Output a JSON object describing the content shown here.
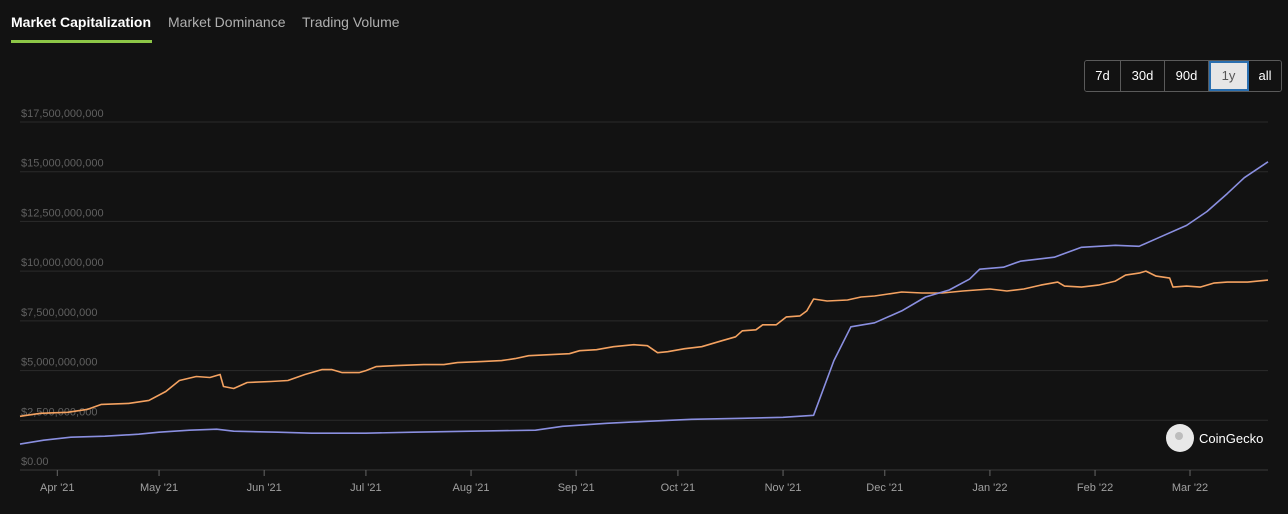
{
  "tabs": [
    {
      "label": "Market Capitalization",
      "active": true
    },
    {
      "label": "Market Dominance",
      "active": false
    },
    {
      "label": "Trading Volume",
      "active": false
    }
  ],
  "range_buttons": [
    {
      "label": "7d",
      "selected": false
    },
    {
      "label": "30d",
      "selected": false
    },
    {
      "label": "90d",
      "selected": false
    },
    {
      "label": "1y",
      "selected": true
    },
    {
      "label": "all",
      "selected": false
    }
  ],
  "credit": {
    "text": "CoinGecko",
    "icon": "coingecko-logo-icon"
  },
  "colors": {
    "series1": "#f4a261",
    "series2": "#8a8fe0",
    "accent": "#8dc647"
  },
  "chart_data": {
    "type": "line",
    "title": "",
    "xlabel": "",
    "ylabel": "",
    "xlim": [
      "2021-03-21",
      "2022-03-24"
    ],
    "ylim": [
      0,
      17500000000
    ],
    "grid": true,
    "y_ticks": [
      {
        "value": 0,
        "label": "$0.00"
      },
      {
        "value": 2500000000,
        "label": "$2,500,000,000"
      },
      {
        "value": 5000000000,
        "label": "$5,000,000,000"
      },
      {
        "value": 7500000000,
        "label": "$7,500,000,000"
      },
      {
        "value": 10000000000,
        "label": "$10,000,000,000"
      },
      {
        "value": 12500000000,
        "label": "$12,500,000,000"
      },
      {
        "value": 15000000000,
        "label": "$15,000,000,000"
      },
      {
        "value": 17500000000,
        "label": "$17,500,000,000"
      }
    ],
    "x_ticks": [
      {
        "date": "2021-04-01",
        "label": "Apr '21"
      },
      {
        "date": "2021-05-01",
        "label": "May '21"
      },
      {
        "date": "2021-06-01",
        "label": "Jun '21"
      },
      {
        "date": "2021-07-01",
        "label": "Jul '21"
      },
      {
        "date": "2021-08-01",
        "label": "Aug '21"
      },
      {
        "date": "2021-09-01",
        "label": "Sep '21"
      },
      {
        "date": "2021-10-01",
        "label": "Oct '21"
      },
      {
        "date": "2021-11-01",
        "label": "Nov '21"
      },
      {
        "date": "2021-12-01",
        "label": "Dec '21"
      },
      {
        "date": "2022-01-01",
        "label": "Jan '22"
      },
      {
        "date": "2022-02-01",
        "label": "Feb '22"
      },
      {
        "date": "2022-03-01",
        "label": "Mar '22"
      }
    ],
    "series": [
      {
        "color": "#f4a261",
        "points": [
          [
            "2021-03-21",
            2700000000
          ],
          [
            "2021-03-27",
            2850000000
          ],
          [
            "2021-04-04",
            2900000000
          ],
          [
            "2021-04-10",
            3050000000
          ],
          [
            "2021-04-14",
            3300000000
          ],
          [
            "2021-04-22",
            3350000000
          ],
          [
            "2021-04-28",
            3500000000
          ],
          [
            "2021-05-03",
            3950000000
          ],
          [
            "2021-05-07",
            4500000000
          ],
          [
            "2021-05-12",
            4700000000
          ],
          [
            "2021-05-16",
            4650000000
          ],
          [
            "2021-05-19",
            4800000000
          ],
          [
            "2021-05-20",
            4200000000
          ],
          [
            "2021-05-23",
            4100000000
          ],
          [
            "2021-05-27",
            4400000000
          ],
          [
            "2021-06-03",
            4450000000
          ],
          [
            "2021-06-08",
            4500000000
          ],
          [
            "2021-06-13",
            4800000000
          ],
          [
            "2021-06-18",
            5050000000
          ],
          [
            "2021-06-21",
            5050000000
          ],
          [
            "2021-06-24",
            4900000000
          ],
          [
            "2021-06-29",
            4900000000
          ],
          [
            "2021-07-01",
            5000000000
          ],
          [
            "2021-07-04",
            5200000000
          ],
          [
            "2021-07-10",
            5250000000
          ],
          [
            "2021-07-18",
            5300000000
          ],
          [
            "2021-07-24",
            5300000000
          ],
          [
            "2021-07-28",
            5400000000
          ],
          [
            "2021-08-04",
            5450000000
          ],
          [
            "2021-08-10",
            5500000000
          ],
          [
            "2021-08-14",
            5600000000
          ],
          [
            "2021-08-18",
            5750000000
          ],
          [
            "2021-08-24",
            5800000000
          ],
          [
            "2021-08-30",
            5850000000
          ],
          [
            "2021-09-02",
            6000000000
          ],
          [
            "2021-09-07",
            6050000000
          ],
          [
            "2021-09-12",
            6200000000
          ],
          [
            "2021-09-18",
            6300000000
          ],
          [
            "2021-09-22",
            6250000000
          ],
          [
            "2021-09-25",
            5900000000
          ],
          [
            "2021-09-28",
            5950000000
          ],
          [
            "2021-10-03",
            6100000000
          ],
          [
            "2021-10-08",
            6200000000
          ],
          [
            "2021-10-14",
            6500000000
          ],
          [
            "2021-10-18",
            6700000000
          ],
          [
            "2021-10-20",
            7000000000
          ],
          [
            "2021-10-24",
            7050000000
          ],
          [
            "2021-10-26",
            7300000000
          ],
          [
            "2021-10-30",
            7300000000
          ],
          [
            "2021-11-02",
            7700000000
          ],
          [
            "2021-11-06",
            7750000000
          ],
          [
            "2021-11-08",
            8000000000
          ],
          [
            "2021-11-10",
            8600000000
          ],
          [
            "2021-11-14",
            8500000000
          ],
          [
            "2021-11-20",
            8550000000
          ],
          [
            "2021-11-24",
            8700000000
          ],
          [
            "2021-11-28",
            8750000000
          ],
          [
            "2021-12-02",
            8850000000
          ],
          [
            "2021-12-06",
            8950000000
          ],
          [
            "2021-12-12",
            8900000000
          ],
          [
            "2021-12-18",
            8900000000
          ],
          [
            "2021-12-24",
            9000000000
          ],
          [
            "2021-12-28",
            9050000000
          ],
          [
            "2022-01-01",
            9100000000
          ],
          [
            "2022-01-06",
            9000000000
          ],
          [
            "2022-01-11",
            9100000000
          ],
          [
            "2022-01-16",
            9300000000
          ],
          [
            "2022-01-21",
            9450000000
          ],
          [
            "2022-01-23",
            9250000000
          ],
          [
            "2022-01-28",
            9200000000
          ],
          [
            "2022-02-02",
            9300000000
          ],
          [
            "2022-02-07",
            9500000000
          ],
          [
            "2022-02-10",
            9800000000
          ],
          [
            "2022-02-14",
            9900000000
          ],
          [
            "2022-02-16",
            10000000000
          ],
          [
            "2022-02-19",
            9750000000
          ],
          [
            "2022-02-23",
            9650000000
          ],
          [
            "2022-02-24",
            9200000000
          ],
          [
            "2022-02-28",
            9250000000
          ],
          [
            "2022-03-04",
            9200000000
          ],
          [
            "2022-03-08",
            9400000000
          ],
          [
            "2022-03-12",
            9450000000
          ],
          [
            "2022-03-18",
            9450000000
          ],
          [
            "2022-03-24",
            9550000000
          ]
        ]
      },
      {
        "color": "#8a8fe0",
        "points": [
          [
            "2021-03-21",
            1300000000
          ],
          [
            "2021-03-28",
            1500000000
          ],
          [
            "2021-04-05",
            1650000000
          ],
          [
            "2021-04-15",
            1700000000
          ],
          [
            "2021-04-25",
            1800000000
          ],
          [
            "2021-05-01",
            1900000000
          ],
          [
            "2021-05-10",
            2000000000
          ],
          [
            "2021-05-18",
            2050000000
          ],
          [
            "2021-05-23",
            1950000000
          ],
          [
            "2021-06-05",
            1900000000
          ],
          [
            "2021-06-15",
            1850000000
          ],
          [
            "2021-07-01",
            1850000000
          ],
          [
            "2021-07-15",
            1900000000
          ],
          [
            "2021-08-01",
            1950000000
          ],
          [
            "2021-08-20",
            2000000000
          ],
          [
            "2021-08-28",
            2200000000
          ],
          [
            "2021-09-10",
            2350000000
          ],
          [
            "2021-09-22",
            2450000000
          ],
          [
            "2021-10-05",
            2550000000
          ],
          [
            "2021-10-20",
            2600000000
          ],
          [
            "2021-11-01",
            2650000000
          ],
          [
            "2021-11-10",
            2750000000
          ],
          [
            "2021-11-16",
            5500000000
          ],
          [
            "2021-11-21",
            7200000000
          ],
          [
            "2021-11-28",
            7400000000
          ],
          [
            "2021-12-06",
            8000000000
          ],
          [
            "2021-12-13",
            8700000000
          ],
          [
            "2021-12-20",
            9050000000
          ],
          [
            "2021-12-26",
            9600000000
          ],
          [
            "2021-12-29",
            10100000000
          ],
          [
            "2022-01-05",
            10200000000
          ],
          [
            "2022-01-10",
            10500000000
          ],
          [
            "2022-01-20",
            10700000000
          ],
          [
            "2022-01-28",
            11200000000
          ],
          [
            "2022-02-07",
            11300000000
          ],
          [
            "2022-02-14",
            11250000000
          ],
          [
            "2022-02-20",
            11700000000
          ],
          [
            "2022-02-28",
            12300000000
          ],
          [
            "2022-03-06",
            13000000000
          ],
          [
            "2022-03-12",
            13900000000
          ],
          [
            "2022-03-17",
            14700000000
          ],
          [
            "2022-03-24",
            15500000000
          ]
        ]
      }
    ]
  }
}
